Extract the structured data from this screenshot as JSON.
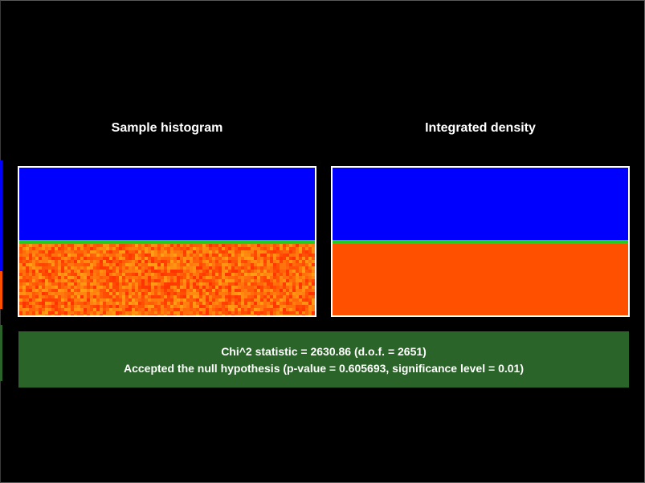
{
  "panels": {
    "left": {
      "title": "Sample histogram",
      "kind": "noisy"
    },
    "right": {
      "title": "Integrated density",
      "kind": "smooth"
    }
  },
  "result": {
    "line1": "Chi^2 statistic = 2630.86 (d.o.f. = 2651)",
    "line2": "Accepted the null hypothesis (p-value = 0.605693, significance level = 0.01)",
    "status": "accepted"
  },
  "colors": {
    "background": "#000000",
    "upper_region": "#0000ff",
    "boundary_line": "#22cc22",
    "lower_region": "#ff5000",
    "result_box": "#2a6428",
    "panel_border": "#ffffff"
  }
}
